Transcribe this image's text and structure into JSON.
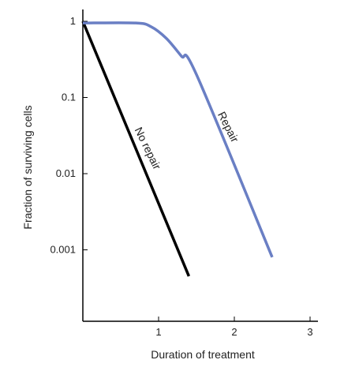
{
  "chart_data": {
    "type": "line",
    "xlabel": "Duration of treatment",
    "ylabel": "Fraction of surviving cells",
    "x_ticks": [
      "1",
      "2",
      "3"
    ],
    "y_ticks": [
      "1",
      "0.1",
      "0.01",
      "0.001"
    ],
    "y_scale": "log",
    "xlim": [
      0,
      3.1
    ],
    "ylim": [
      6e-05,
      1.5
    ],
    "grid": false,
    "series": [
      {
        "name": "No repair",
        "color": "#000000",
        "x": [
          0,
          1.4
        ],
        "y": [
          1,
          0.00045
        ]
      },
      {
        "name": "Repair",
        "color": "#6a7fc4",
        "x": [
          0,
          0.7,
          0.9,
          1.1,
          1.3,
          1.5,
          2.5
        ],
        "y": [
          0.95,
          0.95,
          0.85,
          0.6,
          0.35,
          0.2,
          0.0008
        ]
      }
    ]
  }
}
